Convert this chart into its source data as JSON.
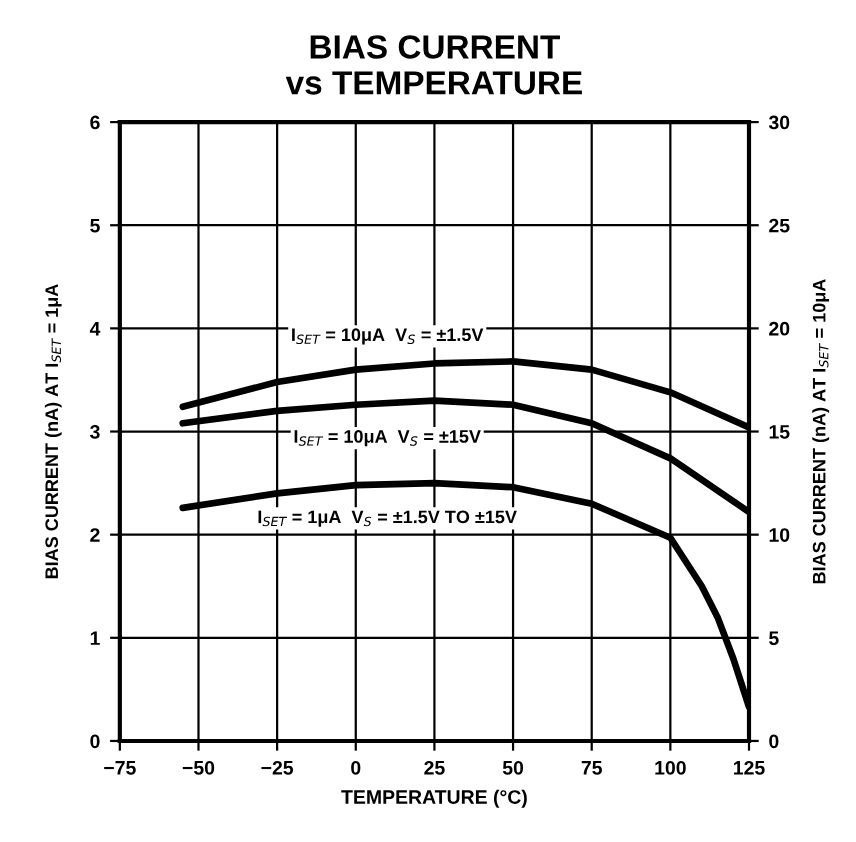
{
  "chart_data": {
    "type": "line",
    "title": "BIAS CURRENT\nvs TEMPERATURE",
    "xlabel": "TEMPERATURE (°C)",
    "ylabel": "BIAS CURRENT (nA) AT I$_{SET}$ = 1μA",
    "y2label": "BIAS CURRENT (nA) AT I$_{SET}$ = 10μA",
    "x": [
      -55,
      -25,
      0,
      25,
      50,
      75,
      100,
      110,
      115,
      120,
      125
    ],
    "series": [
      {
        "name": "I$_{SET}$ = 10μA  V$_{S}$ = ±1.5V",
        "color": "#000000",
        "axis": "y2",
        "values": [
          16.2,
          17.4,
          18.0,
          18.3,
          18.4,
          18.0,
          16.9,
          null,
          null,
          null,
          15.2
        ]
      },
      {
        "name": "I$_{SET}$ = 10μA  V$_{S}$ = ±15V",
        "color": "#000000",
        "axis": "y2",
        "values": [
          15.4,
          16.0,
          16.3,
          16.5,
          16.3,
          15.4,
          13.7,
          null,
          null,
          null,
          11.1
        ]
      },
      {
        "name": "I$_{SET}$ = 1μA  V$_{S}$ = ±1.5V TO ±15V",
        "color": "#000000",
        "values": [
          2.26,
          2.4,
          2.48,
          2.5,
          2.46,
          2.3,
          1.97,
          1.5,
          1.2,
          0.8,
          0.33
        ]
      }
    ],
    "xlim": [
      -75,
      125
    ],
    "xticks": [
      -75,
      -50,
      -25,
      0,
      25,
      50,
      75,
      100,
      125
    ],
    "ylim": [
      0,
      6
    ],
    "yticks": [
      0,
      1,
      2,
      3,
      4,
      5,
      6
    ],
    "y2lim": [
      0,
      30
    ],
    "y2ticks": [
      0,
      5,
      10,
      15,
      20,
      25,
      30
    ],
    "grid": true,
    "line_style": "solid",
    "marker": "none"
  }
}
